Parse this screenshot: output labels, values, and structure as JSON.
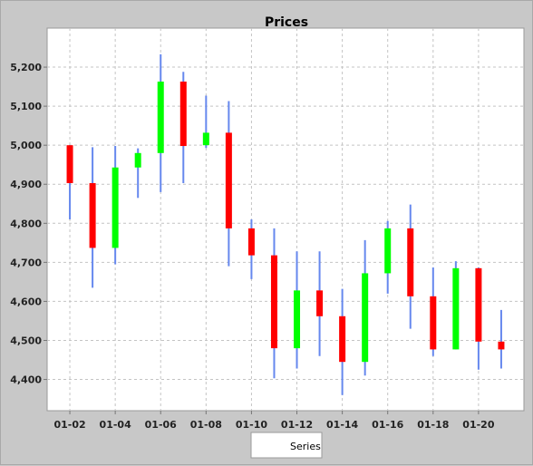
{
  "chart_data": {
    "type": "candlestick",
    "title": "Prices",
    "xlabel": "",
    "ylabel": "",
    "legend": {
      "entries": [
        "Series"
      ],
      "placement": "bottom"
    },
    "grid": true,
    "ylim": [
      4320,
      5300
    ],
    "xlim": [
      "01-01",
      "01-22"
    ],
    "x_ticks": [
      "01-02",
      "01-04",
      "01-06",
      "01-08",
      "01-10",
      "01-12",
      "01-14",
      "01-16",
      "01-18",
      "01-20"
    ],
    "y_ticks": [
      "4,400",
      "4,500",
      "4,600",
      "4,700",
      "4,800",
      "4,900",
      "5,000",
      "5,100",
      "5,200"
    ],
    "y_tick_values": [
      4400,
      4500,
      4600,
      4700,
      4800,
      4900,
      5000,
      5100,
      5200
    ],
    "colors": {
      "up": "#00ff00",
      "down": "#ff0000",
      "wick": "#6688ee",
      "plot_bg": "#ffffff",
      "chart_bg": "#c8c8c8"
    },
    "candles": [
      {
        "date": "01-02",
        "open": 5000,
        "close": 4903,
        "high": 5000,
        "low": 4810
      },
      {
        "date": "01-03",
        "open": 4903,
        "close": 4737,
        "high": 4995,
        "low": 4635
      },
      {
        "date": "01-04",
        "open": 4737,
        "close": 4943,
        "high": 4998,
        "low": 4695
      },
      {
        "date": "01-05",
        "open": 4943,
        "close": 4980,
        "high": 4992,
        "low": 4865
      },
      {
        "date": "01-06",
        "open": 4980,
        "close": 5163,
        "high": 5233,
        "low": 4880
      },
      {
        "date": "01-07",
        "open": 5163,
        "close": 4998,
        "high": 5188,
        "low": 4903
      },
      {
        "date": "01-08",
        "open": 5000,
        "close": 5032,
        "high": 5127,
        "low": 4993
      },
      {
        "date": "01-09",
        "open": 5032,
        "close": 4787,
        "high": 5113,
        "low": 4690
      },
      {
        "date": "01-10",
        "open": 4787,
        "close": 4718,
        "high": 4810,
        "low": 4657
      },
      {
        "date": "01-11",
        "open": 4718,
        "close": 4480,
        "high": 4787,
        "low": 4403
      },
      {
        "date": "01-12",
        "open": 4480,
        "close": 4628,
        "high": 4728,
        "low": 4428
      },
      {
        "date": "01-13",
        "open": 4628,
        "close": 4562,
        "high": 4728,
        "low": 4460
      },
      {
        "date": "01-14",
        "open": 4562,
        "close": 4445,
        "high": 4632,
        "low": 4360
      },
      {
        "date": "01-15",
        "open": 4445,
        "close": 4672,
        "high": 4757,
        "low": 4410
      },
      {
        "date": "01-16",
        "open": 4672,
        "close": 4787,
        "high": 4806,
        "low": 4620
      },
      {
        "date": "01-17",
        "open": 4787,
        "close": 4613,
        "high": 4848,
        "low": 4530
      },
      {
        "date": "01-18",
        "open": 4613,
        "close": 4477,
        "high": 4687,
        "low": 4460
      },
      {
        "date": "01-19",
        "open": 4477,
        "close": 4685,
        "high": 4703,
        "low": 4477
      },
      {
        "date": "01-20",
        "open": 4685,
        "close": 4497,
        "high": 4687,
        "low": 4425
      },
      {
        "date": "01-21",
        "open": 4497,
        "close": 4477,
        "high": 4578,
        "low": 4428
      }
    ]
  }
}
